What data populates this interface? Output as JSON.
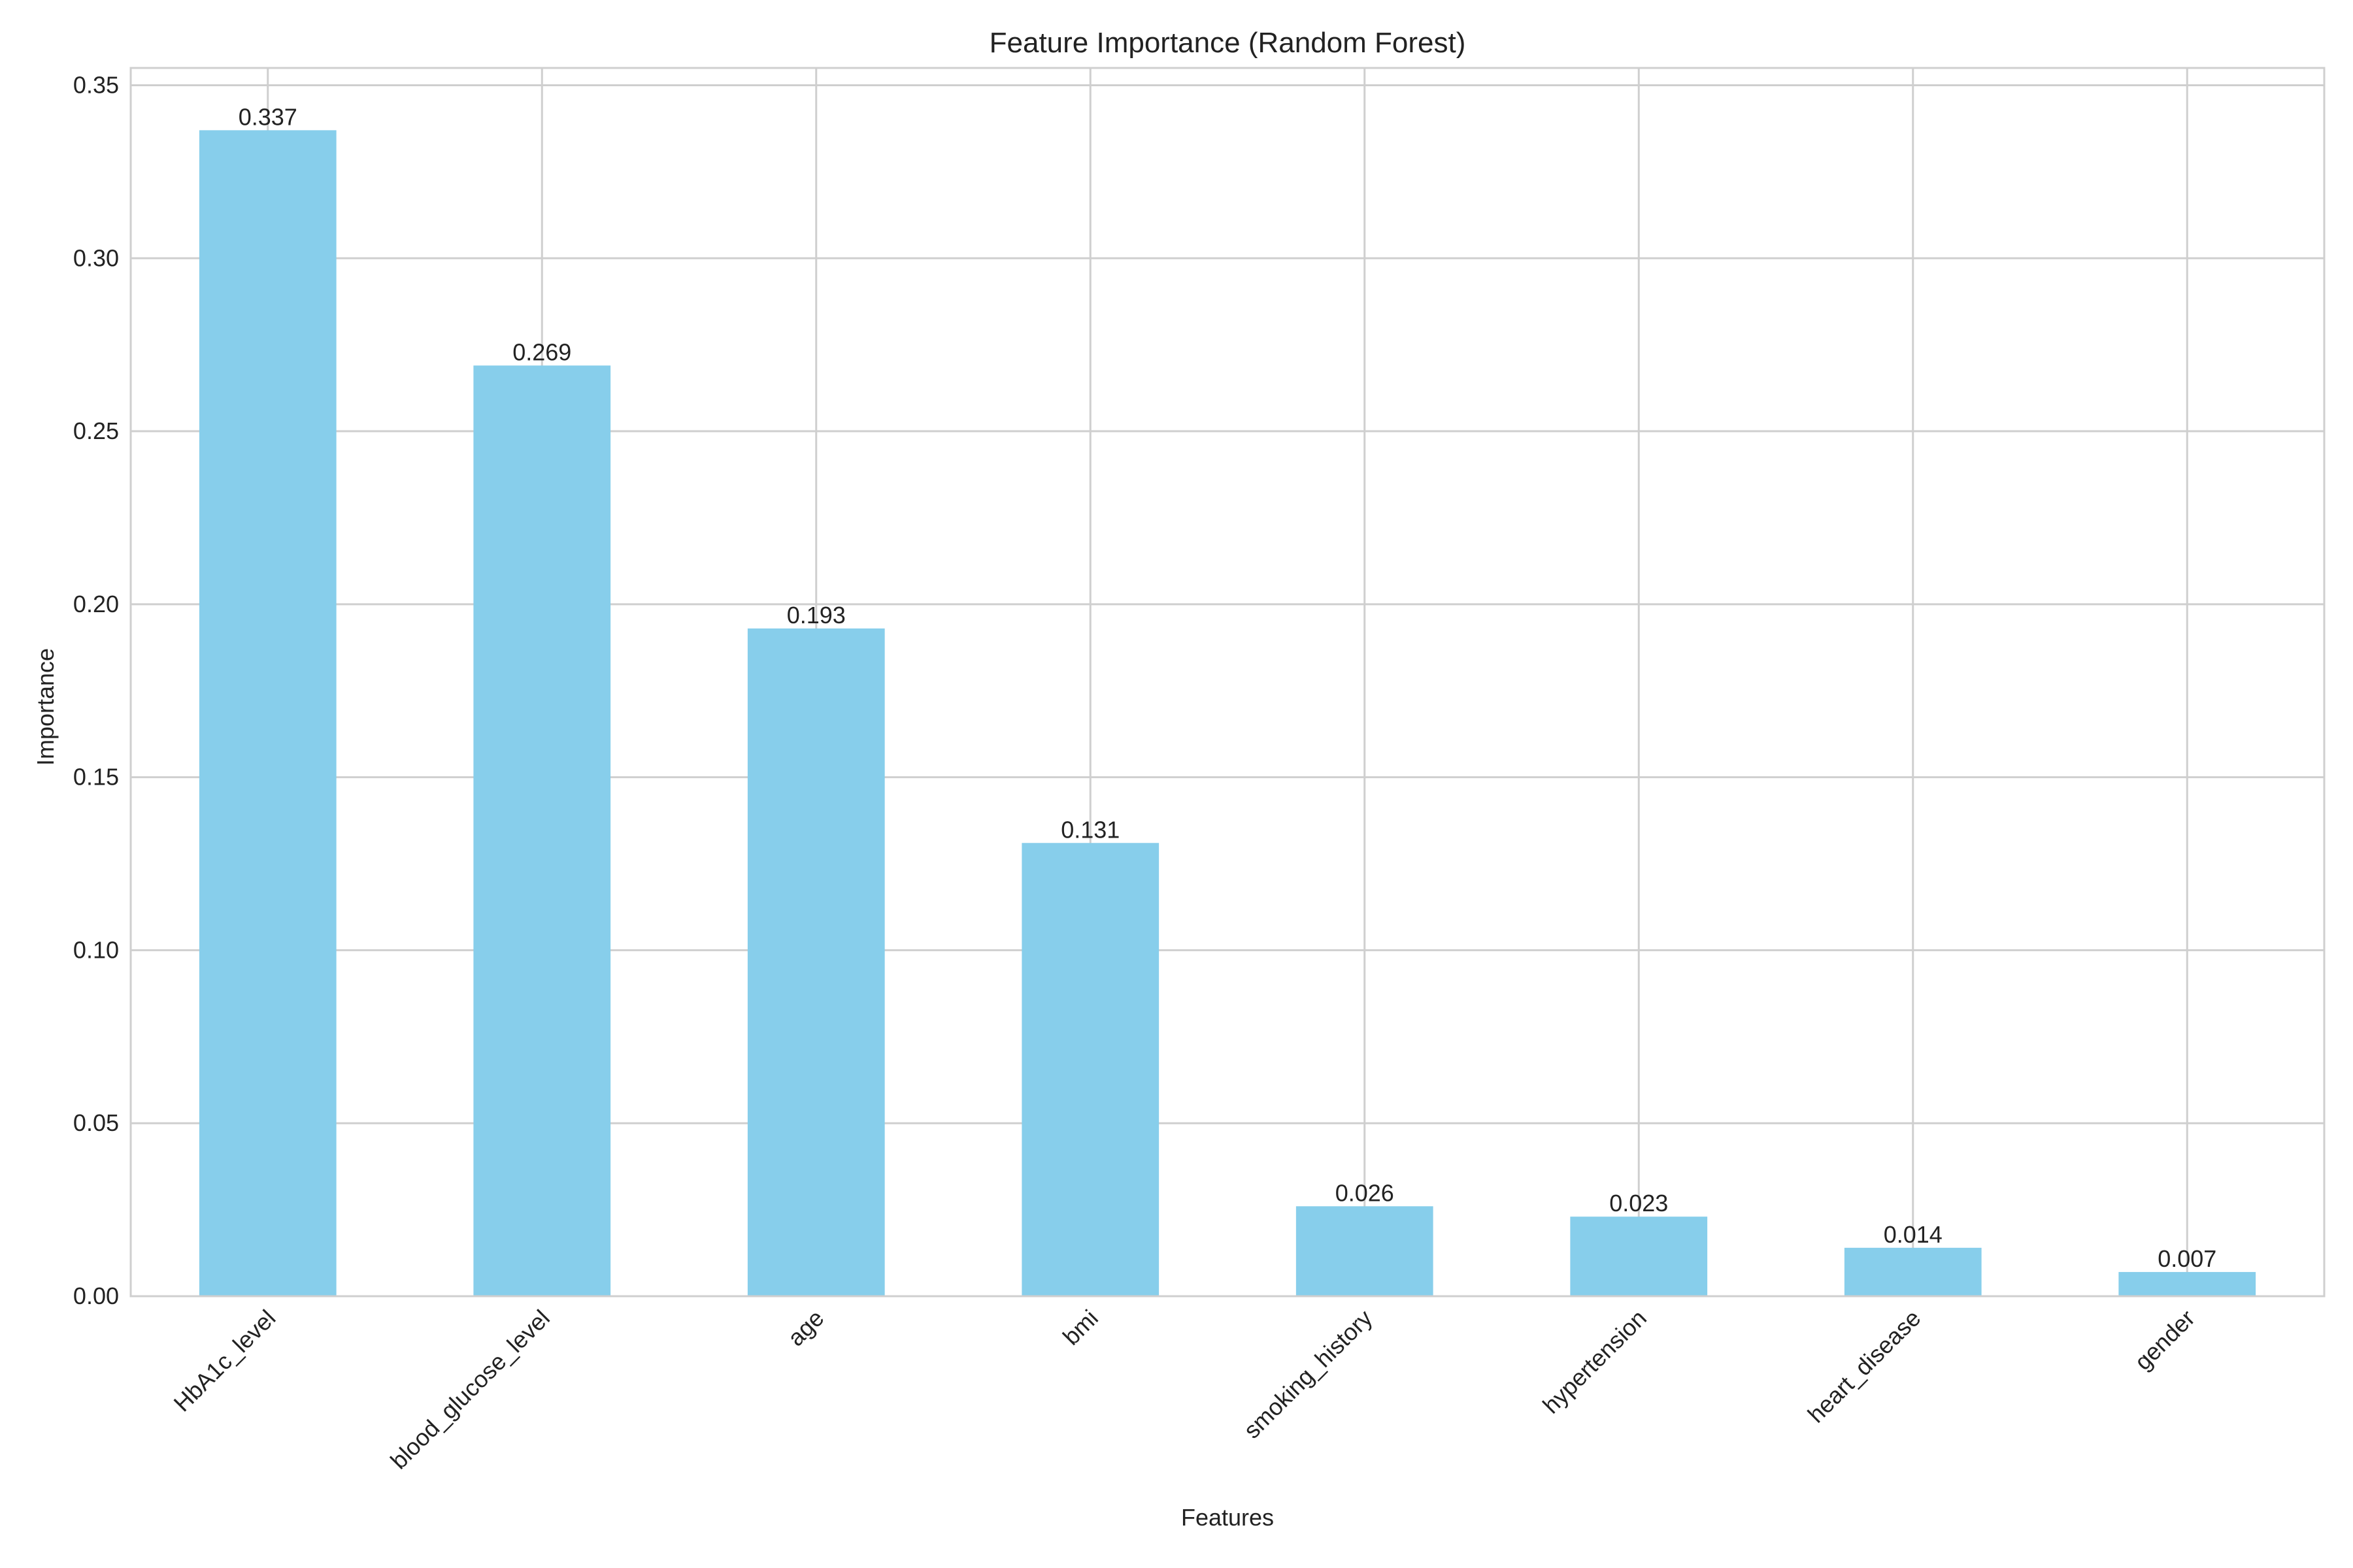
{
  "chart_data": {
    "type": "bar",
    "title": "Feature Importance (Random Forest)",
    "xlabel": "Features",
    "ylabel": "Importance",
    "categories": [
      "HbA1c_level",
      "blood_glucose_level",
      "age",
      "bmi",
      "smoking_history",
      "hypertension",
      "heart_disease",
      "gender"
    ],
    "values": [
      0.337,
      0.269,
      0.193,
      0.131,
      0.026,
      0.023,
      0.014,
      0.007
    ],
    "value_labels": [
      "0.337",
      "0.269",
      "0.193",
      "0.131",
      "0.026",
      "0.023",
      "0.014",
      "0.007"
    ],
    "ylim": [
      0,
      0.355
    ],
    "yticks": [
      0.0,
      0.05,
      0.1,
      0.15,
      0.2,
      0.25,
      0.3,
      0.35
    ],
    "ytick_labels": [
      "0.00",
      "0.05",
      "0.10",
      "0.15",
      "0.20",
      "0.25",
      "0.30",
      "0.35"
    ],
    "grid": true,
    "bar_color": "#87CEEB",
    "grid_color": "#cfcfcf"
  }
}
